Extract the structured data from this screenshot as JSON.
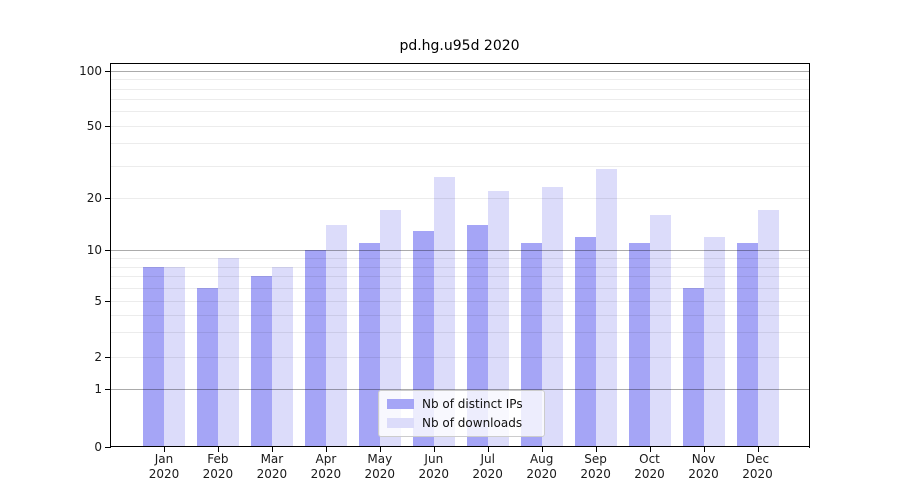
{
  "chart_data": {
    "type": "bar",
    "title": "pd.hg.u95d 2020",
    "categories": [
      "Jan 2020",
      "Feb 2020",
      "Mar 2020",
      "Apr 2020",
      "May 2020",
      "Jun 2020",
      "Jul 2020",
      "Aug 2020",
      "Sep 2020",
      "Oct 2020",
      "Nov 2020",
      "Dec 2020"
    ],
    "x_tick_months": [
      "Jan",
      "Feb",
      "Mar",
      "Apr",
      "May",
      "Jun",
      "Jul",
      "Aug",
      "Sep",
      "Oct",
      "Nov",
      "Dec"
    ],
    "x_tick_year": "2020",
    "series": [
      {
        "name": "Nb of distinct IPs",
        "color": "#a5a5f6",
        "values": [
          8,
          6,
          7,
          10,
          11,
          13,
          14,
          11,
          12,
          11,
          6,
          11
        ]
      },
      {
        "name": "Nb of downloads",
        "color": "#dcdcfa",
        "values": [
          8,
          9,
          8,
          14,
          17,
          26,
          22,
          23,
          29,
          16,
          12,
          17
        ]
      }
    ],
    "y_ticks": [
      0,
      1,
      2,
      5,
      10,
      20,
      50,
      100
    ],
    "yscale": "symlog",
    "ylim": [
      0,
      110
    ],
    "xlabel": "",
    "ylabel": "",
    "grid": "both",
    "legend_position": "lower center",
    "colors": {
      "background": "#ffffff",
      "bar_distinct_ips": "#a5a5f6",
      "bar_downloads": "#dcdcfa",
      "major_grid": "rgba(0,0,0,0.33)",
      "minor_grid": "rgba(0,0,0,0.075)",
      "axis": "#000000",
      "tick_text": "#1a1a1a"
    }
  }
}
